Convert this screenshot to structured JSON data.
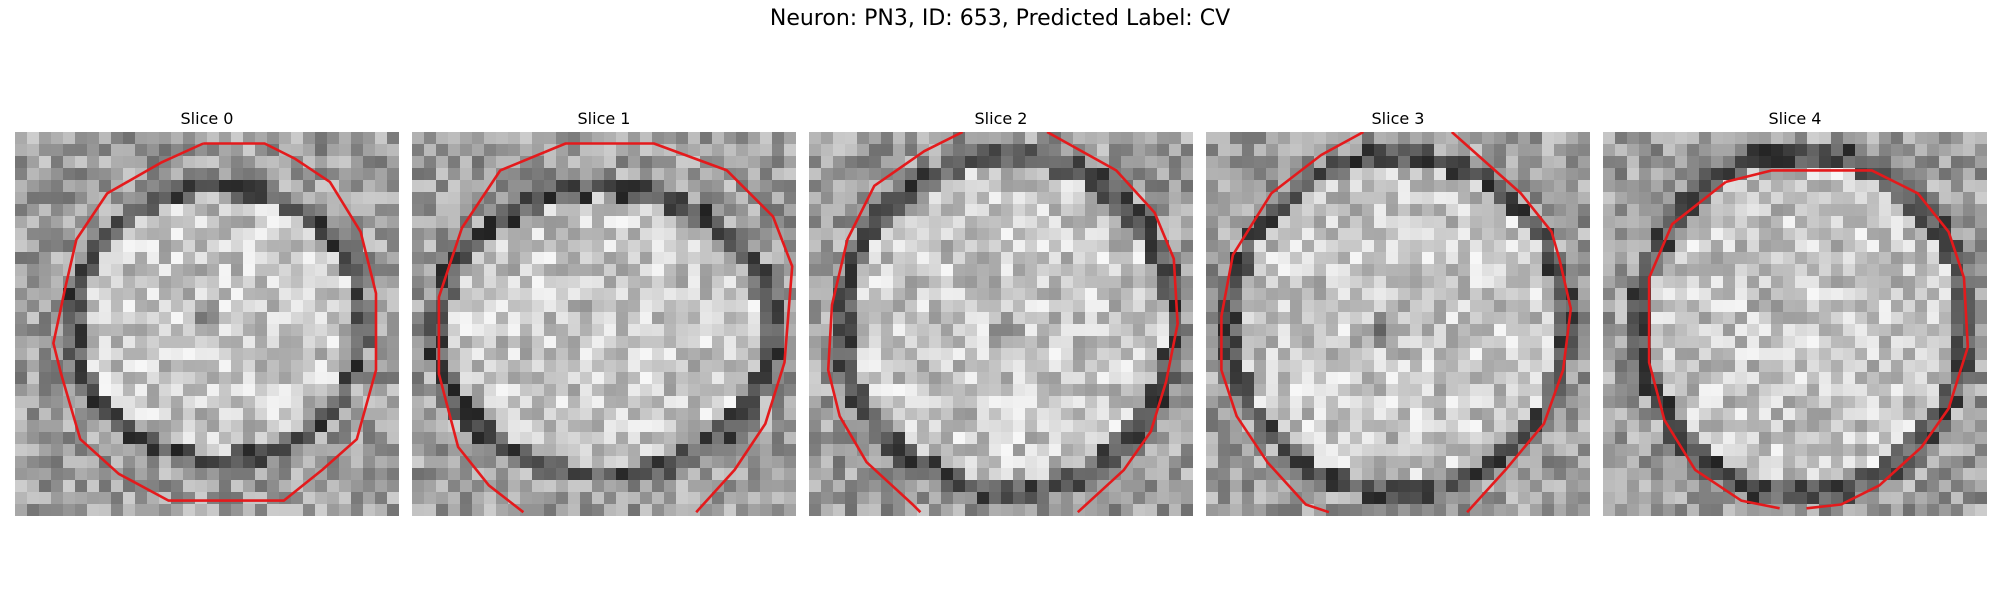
{
  "figure": {
    "title": "Neuron: PN3, ID: 653, Predicted Label: CV"
  },
  "panels": [
    {
      "title": "Slice 0"
    },
    {
      "title": "Slice 1"
    },
    {
      "title": "Slice 2"
    },
    {
      "title": "Slice 3"
    },
    {
      "title": "Slice 4"
    }
  ],
  "colors": {
    "contour": "#e41a1c"
  }
}
